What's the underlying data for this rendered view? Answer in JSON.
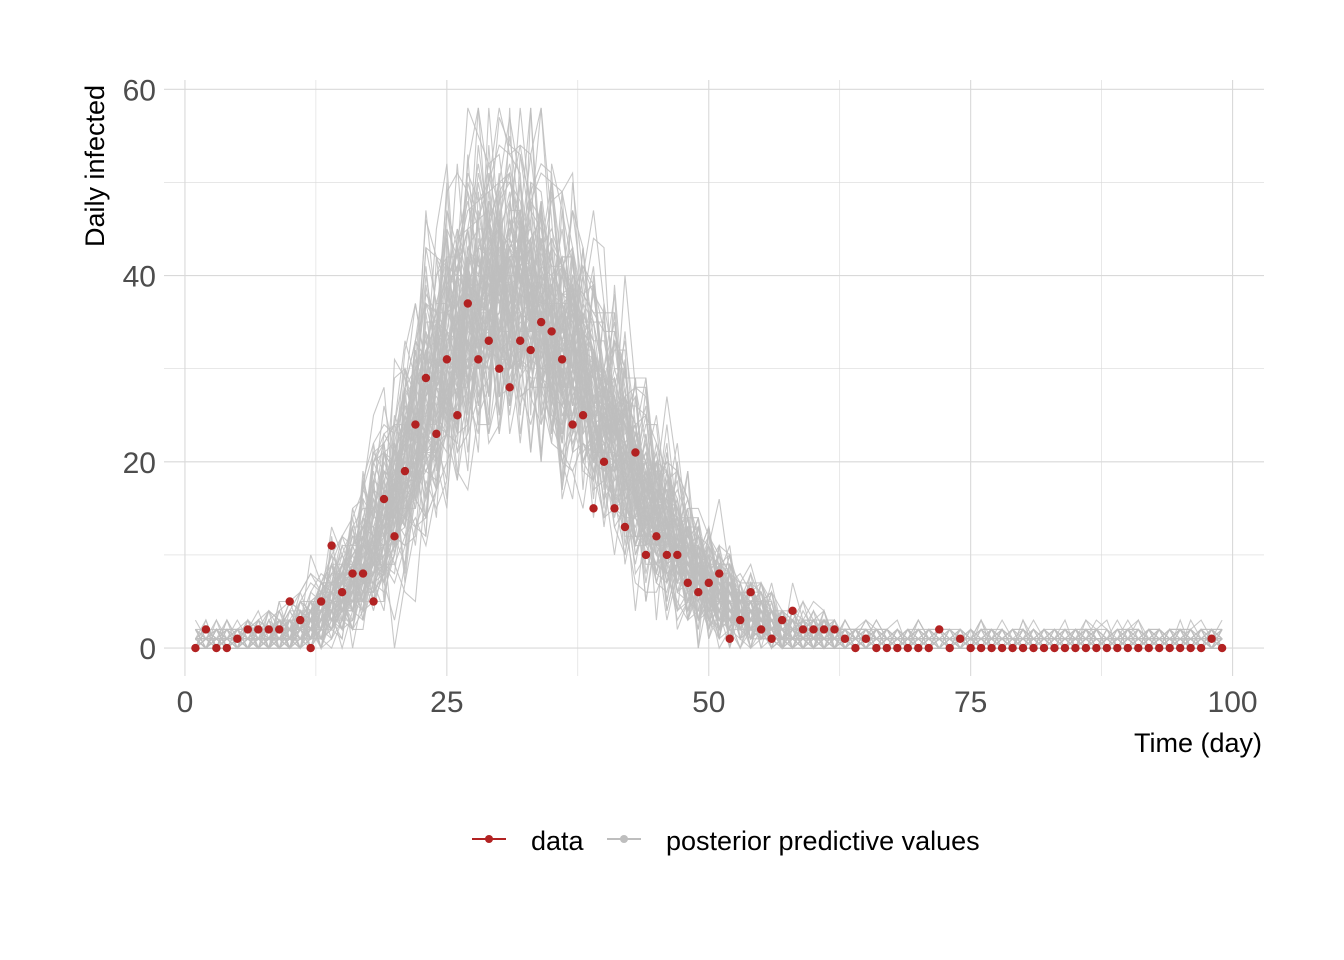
{
  "chart_data": {
    "type": "line",
    "xlabel": "Time (day)",
    "ylabel": "Daily infected",
    "xlim": [
      -2,
      103
    ],
    "ylim": [
      -3,
      61
    ],
    "x_ticks": [
      0,
      25,
      50,
      75,
      100
    ],
    "y_ticks": [
      0,
      20,
      40,
      60
    ],
    "grid": true,
    "legend_position": "bottom",
    "legend": [
      "data",
      "posterior predictive values"
    ],
    "colors": {
      "data": "#b22222",
      "posterior": "#bebebe",
      "grid": "#d9d9d9"
    },
    "series": [
      {
        "name": "data",
        "type": "scatter",
        "x": [
          1,
          2,
          3,
          4,
          5,
          6,
          7,
          8,
          9,
          10,
          11,
          12,
          13,
          14,
          15,
          16,
          17,
          18,
          19,
          20,
          21,
          22,
          23,
          24,
          25,
          26,
          27,
          28,
          29,
          30,
          31,
          32,
          33,
          34,
          35,
          36,
          37,
          38,
          39,
          40,
          41,
          42,
          43,
          44,
          45,
          46,
          47,
          48,
          49,
          50,
          51,
          52,
          53,
          54,
          55,
          56,
          57,
          58,
          59,
          60,
          61,
          62,
          63,
          64,
          65,
          66,
          67,
          68,
          69,
          70,
          71,
          72,
          73,
          74,
          75,
          76,
          77,
          78,
          79,
          80,
          81,
          82,
          83,
          84,
          85,
          86,
          87,
          88,
          89,
          90,
          91,
          92,
          93,
          94,
          95,
          96,
          97,
          98,
          99
        ],
        "y": [
          0,
          2,
          0,
          0,
          1,
          2,
          2,
          2,
          2,
          5,
          3,
          0,
          5,
          11,
          6,
          8,
          8,
          5,
          16,
          12,
          19,
          24,
          29,
          23,
          31,
          25,
          37,
          31,
          33,
          30,
          28,
          33,
          32,
          35,
          34,
          31,
          24,
          25,
          15,
          20,
          15,
          13,
          21,
          10,
          12,
          10,
          10,
          7,
          6,
          7,
          8,
          1,
          3,
          6,
          2,
          1,
          3,
          4,
          2,
          2,
          2,
          2,
          1,
          0,
          1,
          0,
          0,
          0,
          0,
          0,
          0,
          2,
          0,
          1,
          0,
          0,
          0,
          0,
          0,
          0,
          0,
          0,
          0,
          0,
          0,
          0,
          0,
          0,
          0,
          0,
          0,
          0,
          0,
          0,
          0,
          0,
          0,
          1,
          0
        ]
      },
      {
        "name": "posterior predictive values",
        "type": "line_ensemble",
        "draws": 100,
        "x_range": [
          1,
          99
        ],
        "peak_day": 30,
        "peak_mean": 38,
        "peak_max": 58
      }
    ]
  }
}
